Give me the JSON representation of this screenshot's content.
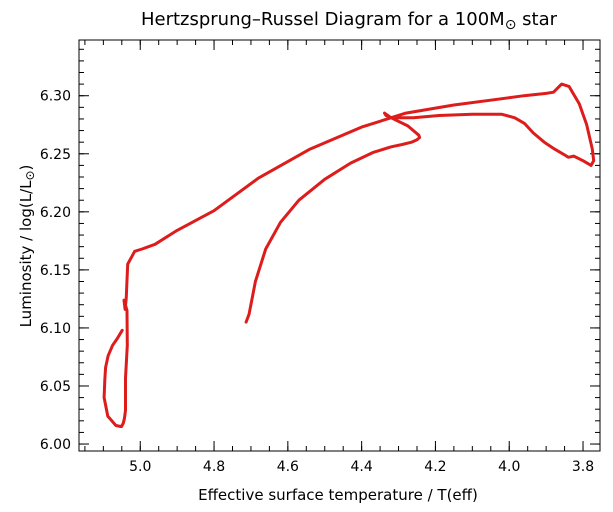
{
  "chart_data": {
    "type": "line",
    "title": "Hertzsprung–Russel Diagram for a 100M",
    "title_symbol": "⊙",
    "title_suffix": " star",
    "xlabel": "Effective surface temperature / T(eff)",
    "ylabel": "Luminosity / log(L/L",
    "ylabel_symbol": "⊙",
    "ylabel_suffix": ")",
    "xlim": [
      5.166,
      3.754
    ],
    "ylim": [
      5.994,
      6.348
    ],
    "x_reversed": true,
    "grid": false,
    "x_ticks": [
      5.0,
      4.8,
      4.6,
      4.4,
      4.2,
      4.0,
      3.8
    ],
    "x_tick_labels": [
      "5.0",
      "4.8",
      "4.6",
      "4.4",
      "4.2",
      "4.0",
      "3.8"
    ],
    "y_ticks": [
      6.0,
      6.05,
      6.1,
      6.15,
      6.2,
      6.25,
      6.3
    ],
    "y_tick_labels": [
      "6.00",
      "6.05",
      "6.10",
      "6.15",
      "6.20",
      "6.25",
      "6.30"
    ],
    "series": [
      {
        "color": "#dd1c1c",
        "x": [
          4.713,
          4.705,
          4.688,
          4.66,
          4.62,
          4.57,
          4.5,
          4.43,
          4.37,
          4.32,
          4.29,
          4.265,
          4.25,
          4.243,
          4.245,
          4.275,
          4.32,
          4.338,
          4.334,
          4.318,
          4.26,
          4.19,
          4.1,
          4.02,
          3.985,
          3.958,
          3.935,
          3.905,
          3.877,
          3.85,
          3.84,
          3.825,
          3.8,
          3.778,
          3.771,
          3.775,
          3.79,
          3.81,
          3.838,
          3.858,
          3.88,
          3.9,
          3.96,
          4.03,
          4.15,
          4.28,
          4.4,
          4.54,
          4.68,
          4.8,
          4.9,
          4.96,
          4.995,
          5.015,
          5.034,
          5.038,
          5.041,
          5.044,
          5.036,
          5.035,
          5.04,
          5.04,
          5.043,
          5.046,
          5.051,
          5.066,
          5.088,
          5.098,
          5.096,
          5.094,
          5.087,
          5.075,
          5.062,
          5.049
        ],
        "y": [
          6.105,
          6.112,
          6.14,
          6.168,
          6.191,
          6.21,
          6.228,
          6.242,
          6.251,
          6.256,
          6.258,
          6.26,
          6.262,
          6.264,
          6.266,
          6.274,
          6.281,
          6.285,
          6.283,
          6.281,
          6.281,
          6.283,
          6.284,
          6.284,
          6.281,
          6.276,
          6.268,
          6.26,
          6.254,
          6.249,
          6.247,
          6.248,
          6.244,
          6.24,
          6.244,
          6.254,
          6.275,
          6.293,
          6.308,
          6.31,
          6.303,
          6.302,
          6.3,
          6.297,
          6.292,
          6.285,
          6.273,
          6.254,
          6.229,
          6.201,
          6.184,
          6.172,
          6.168,
          6.166,
          6.155,
          6.125,
          6.116,
          6.124,
          6.115,
          6.085,
          6.057,
          6.029,
          6.022,
          6.018,
          6.015,
          6.016,
          6.024,
          6.04,
          6.055,
          6.066,
          6.076,
          6.085,
          6.091,
          6.098
        ]
      }
    ]
  }
}
